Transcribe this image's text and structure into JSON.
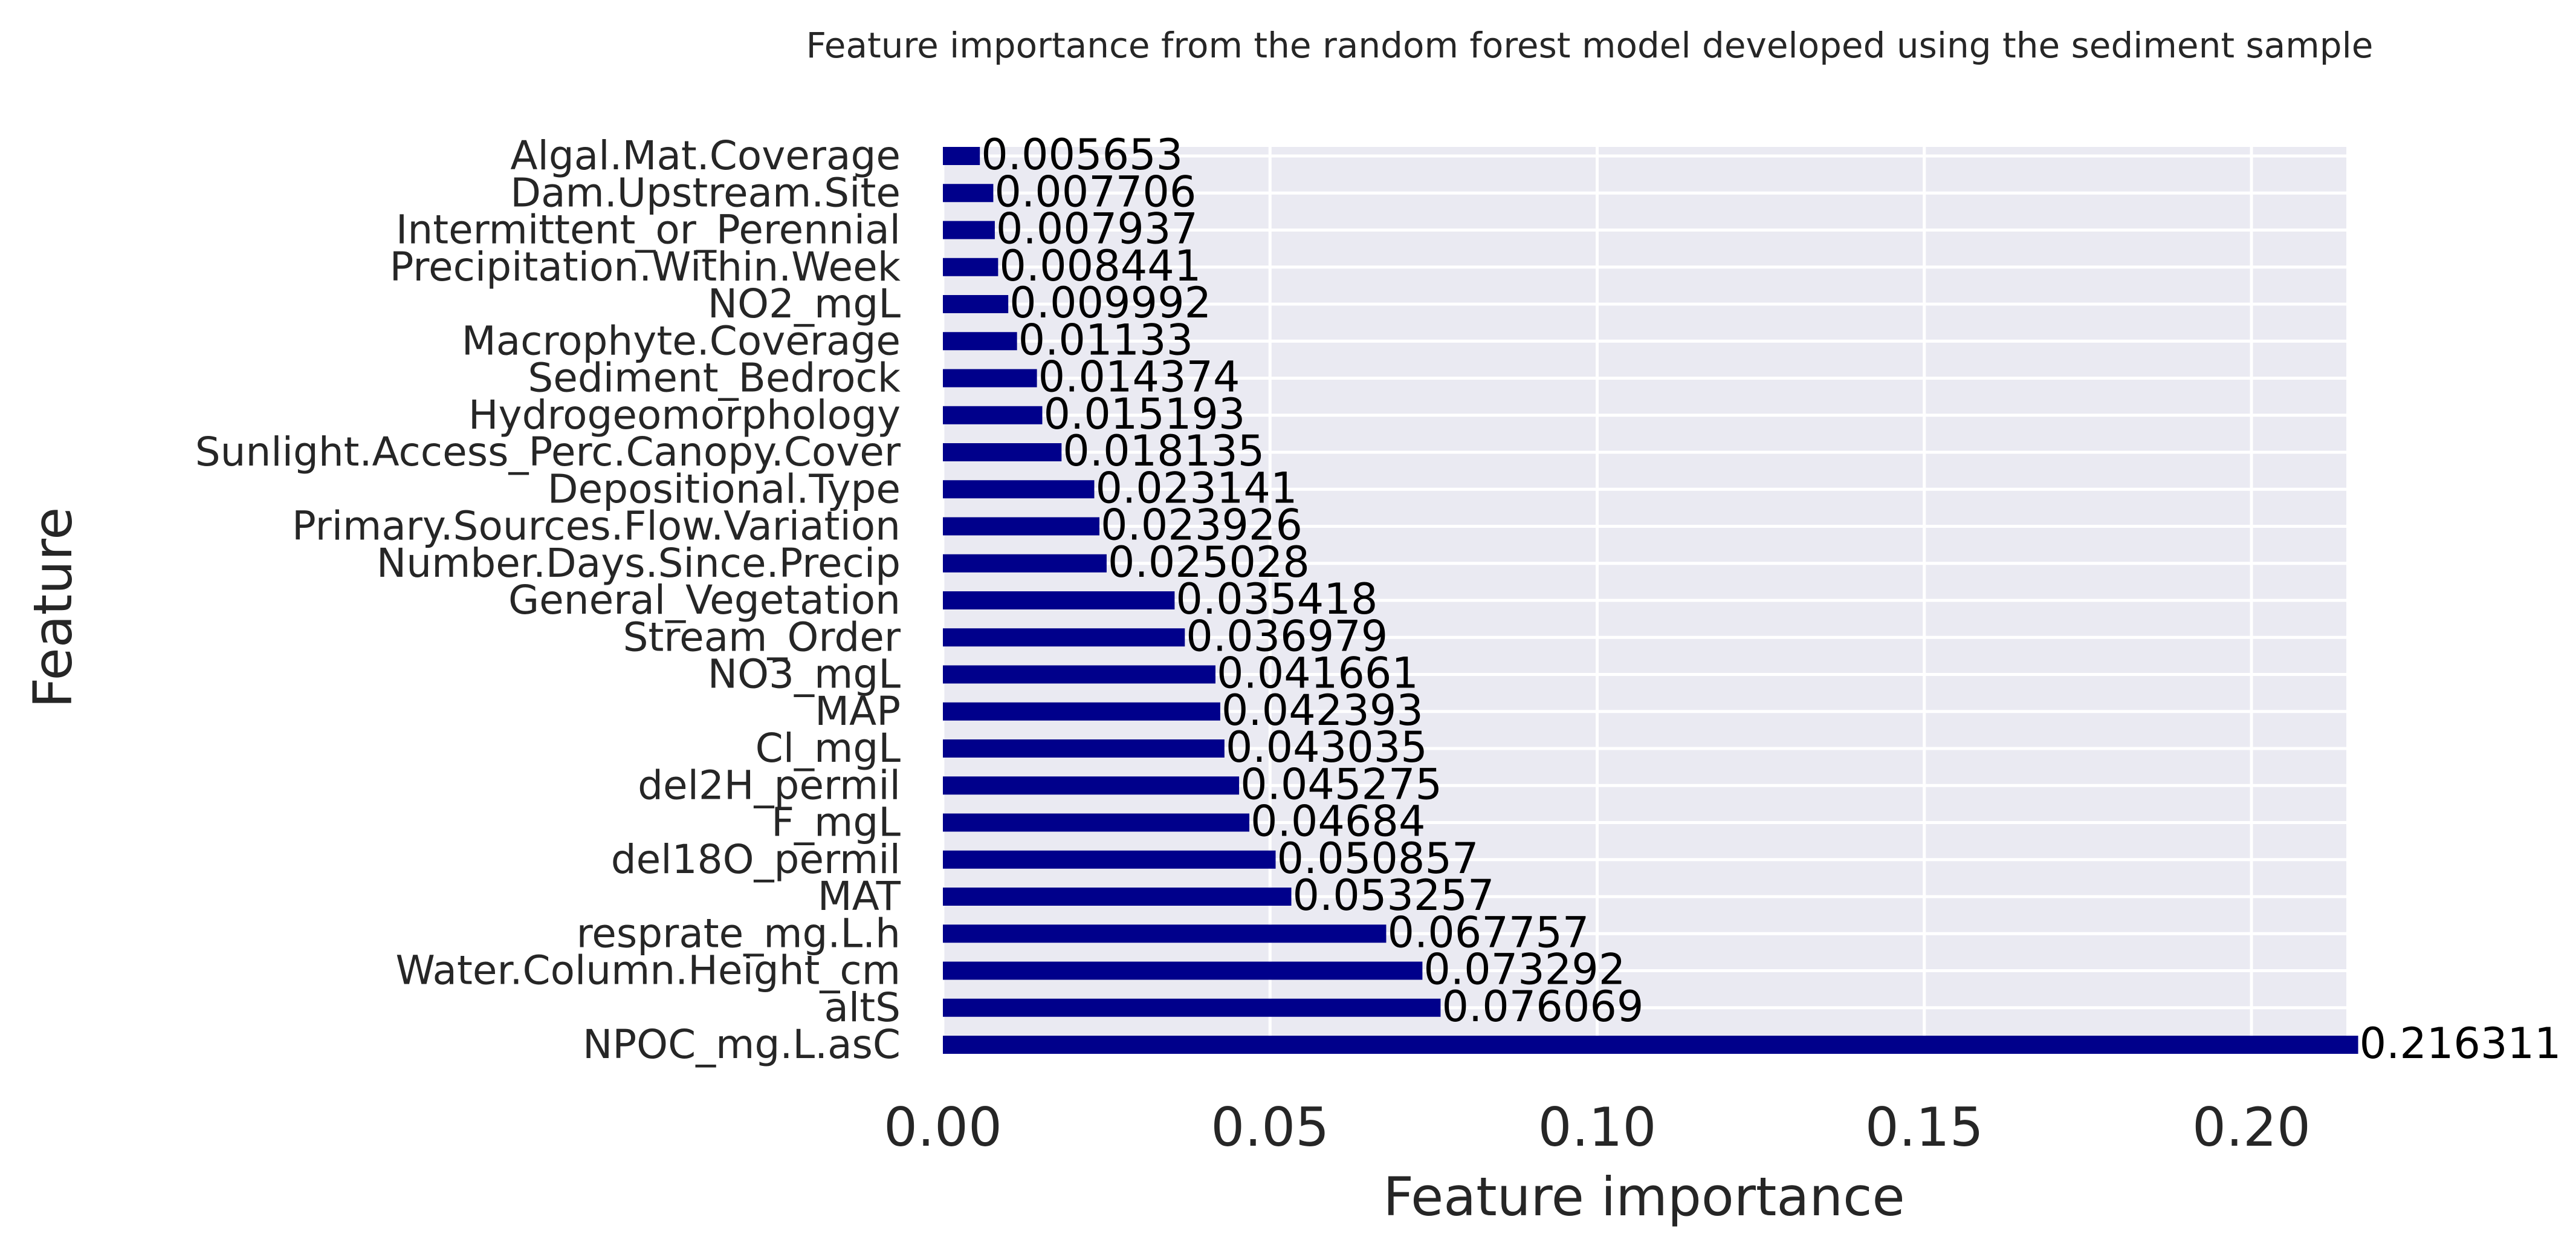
{
  "chart_data": {
    "type": "bar",
    "orientation": "horizontal",
    "title": "Feature importance from the random forest model developed using the sediment sample",
    "xlabel": "Feature importance",
    "ylabel": "Feature",
    "xlim": [
      0,
      0.2266
    ],
    "xticks": [
      0.0,
      0.05,
      0.1,
      0.15,
      0.2
    ],
    "xtick_labels": [
      "0.00",
      "0.05",
      "0.10",
      "0.15",
      "0.20"
    ],
    "grid": true,
    "bar_color": "#00008b",
    "background_color": "#eaeaf2",
    "categories": [
      "NPOC_mg.L.asC",
      "altS",
      "Water.Column.Height_cm",
      "resprate_mg.L.h",
      "MAT",
      "del18O_permil",
      "F_mgL",
      "del2H_permil",
      "Cl_mgL",
      "MAP",
      "NO3_mgL",
      "Stream_Order",
      "General_Vegetation",
      "Number.Days.Since.Precip",
      "Primary.Sources.Flow.Variation",
      "Depositional.Type",
      "Sunlight.Access_Perc.Canopy.Cover",
      "Hydrogeomorphology",
      "Sediment_Bedrock",
      "Macrophyte.Coverage",
      "NO2_mgL",
      "Precipitation.Within.Week",
      "Intermittent_or_Perennial",
      "Dam.Upstream.Site",
      "Algal.Mat.Coverage"
    ],
    "values": [
      0.216311,
      0.076069,
      0.073292,
      0.067757,
      0.053257,
      0.050857,
      0.04684,
      0.045275,
      0.043035,
      0.042393,
      0.041661,
      0.036979,
      0.035418,
      0.025028,
      0.023926,
      0.023141,
      0.018135,
      0.015193,
      0.014374,
      0.01133,
      0.009992,
      0.008441,
      0.007937,
      0.007706,
      0.005653
    ],
    "value_labels": [
      "0.216311",
      "0.076069",
      "0.073292",
      "0.067757",
      "0.053257",
      "0.050857",
      "0.04684",
      "0.045275",
      "0.043035",
      "0.042393",
      "0.041661",
      "0.036979",
      "0.035418",
      "0.025028",
      "0.023926",
      "0.023141",
      "0.018135",
      "0.015193",
      "0.014374",
      "0.01133",
      "0.009992",
      "0.008441",
      "0.007937",
      "0.007706",
      "0.005653"
    ]
  }
}
